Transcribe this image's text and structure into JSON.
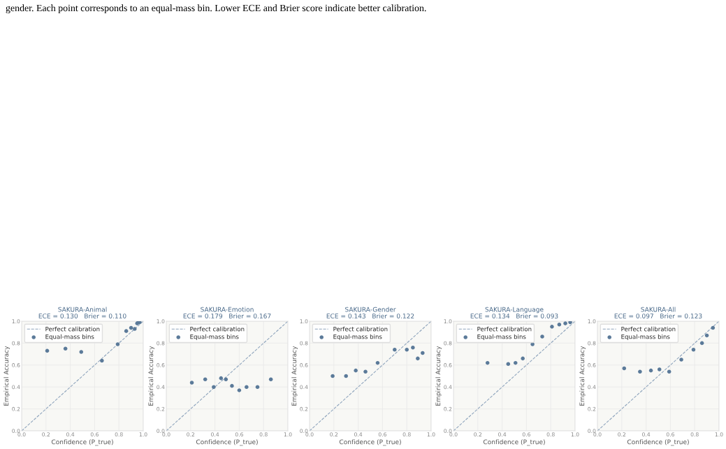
{
  "chart_data": [
    {
      "type": "scatter",
      "title": "SAKURA-Animal",
      "subtitle": "ECE = 0.130   Brier = 0.110",
      "xlabel": "Confidence (P_true)",
      "ylabel": "Empirical Accuracy",
      "annotations": [
        "gender. Each point corresponds to an equal-mass bin. Lower ECE and Brier score indicate better calibration."
      ],
      "xlim": [
        0,
        1
      ],
      "ylim": [
        0,
        1
      ],
      "xticks": [
        {
          "value": 0,
          "label": "0.0"
        },
        {
          "value": 0.2,
          "label": "0.2"
        },
        {
          "value": 0.4,
          "label": "0.4"
        },
        {
          "value": 0.6,
          "label": "0.6"
        },
        {
          "value": 0.8,
          "label": "0.8"
        },
        {
          "value": 1,
          "label": "1.0"
        }
      ],
      "yticks": [
        {
          "value": 0,
          "label": "0.0"
        },
        {
          "value": 0.2,
          "label": "0.2"
        },
        {
          "value": 0.4,
          "label": "0.4"
        },
        {
          "value": 0.6,
          "label": "0.6"
        },
        {
          "value": 0.8,
          "label": "0.8"
        },
        {
          "value": 1,
          "label": "1.0"
        }
      ],
      "grid": true,
      "legend": "top left",
      "series": [
        {
          "name": "Perfect calibration",
          "type": "line",
          "line_style": "dashed",
          "marker": "none",
          "color": "#8fa5bd",
          "x": [
            0,
            1
          ],
          "values": [
            0,
            1
          ]
        },
        {
          "name": "Equal-mass bins",
          "marker": "circle",
          "color": "#5b7a99",
          "x": [
            0.21,
            0.36,
            0.49,
            0.66,
            0.79,
            0.86,
            0.9,
            0.93,
            0.95,
            0.96,
            0.97
          ],
          "values": [
            0.73,
            0.75,
            0.72,
            0.64,
            0.79,
            0.91,
            0.94,
            0.93,
            0.98,
            0.99,
            0.99
          ]
        }
      ]
    },
    {
      "type": "scatter",
      "title": "SAKURA-Emotion",
      "subtitle": "ECE = 0.179   Brier = 0.167",
      "xlabel": "Confidence (P_true)",
      "ylabel": "Empirical Accuracy",
      "xlim": [
        0,
        1
      ],
      "ylim": [
        0,
        1
      ],
      "xticks": [
        {
          "value": 0,
          "label": "0.0"
        },
        {
          "value": 0.2,
          "label": "0.2"
        },
        {
          "value": 0.4,
          "label": "0.4"
        },
        {
          "value": 0.6,
          "label": "0.6"
        },
        {
          "value": 0.8,
          "label": "0.8"
        },
        {
          "value": 1,
          "label": "1.0"
        }
      ],
      "yticks": [
        {
          "value": 0,
          "label": "0.0"
        },
        {
          "value": 0.2,
          "label": "0.2"
        },
        {
          "value": 0.4,
          "label": "0.4"
        },
        {
          "value": 0.6,
          "label": "0.6"
        },
        {
          "value": 0.8,
          "label": "0.8"
        },
        {
          "value": 1,
          "label": "1.0"
        }
      ],
      "grid": true,
      "legend": "top left",
      "series": [
        {
          "name": "Perfect calibration",
          "type": "line",
          "line_style": "dashed",
          "marker": "none",
          "color": "#8fa5bd",
          "x": [
            0,
            1
          ],
          "values": [
            0,
            1
          ]
        },
        {
          "name": "Equal-mass bins",
          "marker": "circle",
          "color": "#5b7a99",
          "x": [
            0.21,
            0.32,
            0.39,
            0.45,
            0.49,
            0.54,
            0.6,
            0.66,
            0.75,
            0.86
          ],
          "values": [
            0.44,
            0.47,
            0.4,
            0.48,
            0.47,
            0.41,
            0.37,
            0.4,
            0.4,
            0.47
          ]
        }
      ]
    },
    {
      "type": "scatter",
      "title": "SAKURA-Gender",
      "subtitle": "ECE = 0.143   Brier = 0.122",
      "xlabel": "Confidence (P_true)",
      "ylabel": "Empirical Accuracy",
      "xlim": [
        0,
        1
      ],
      "ylim": [
        0,
        1
      ],
      "xticks": [
        {
          "value": 0,
          "label": "0.0"
        },
        {
          "value": 0.2,
          "label": "0.2"
        },
        {
          "value": 0.4,
          "label": "0.4"
        },
        {
          "value": 0.6,
          "label": "0.6"
        },
        {
          "value": 0.8,
          "label": "0.8"
        },
        {
          "value": 1,
          "label": "1.0"
        }
      ],
      "yticks": [
        {
          "value": 0,
          "label": "0.0"
        },
        {
          "value": 0.2,
          "label": "0.2"
        },
        {
          "value": 0.4,
          "label": "0.4"
        },
        {
          "value": 0.6,
          "label": "0.6"
        },
        {
          "value": 0.8,
          "label": "0.8"
        },
        {
          "value": 1,
          "label": "1.0"
        }
      ],
      "grid": true,
      "legend": "top left",
      "series": [
        {
          "name": "Perfect calibration",
          "type": "line",
          "line_style": "dashed",
          "marker": "none",
          "color": "#8fa5bd",
          "x": [
            0,
            1
          ],
          "values": [
            0,
            1
          ]
        },
        {
          "name": "Equal-mass bins",
          "marker": "circle",
          "color": "#5b7a99",
          "x": [
            0.19,
            0.3,
            0.38,
            0.46,
            0.56,
            0.7,
            0.8,
            0.85,
            0.89,
            0.93
          ],
          "values": [
            0.5,
            0.5,
            0.55,
            0.54,
            0.62,
            0.74,
            0.74,
            0.76,
            0.66,
            0.71
          ]
        }
      ]
    },
    {
      "type": "scatter",
      "title": "SAKURA-Language",
      "subtitle": "ECE = 0.134   Brier = 0.093",
      "xlabel": "Confidence (P_true)",
      "ylabel": "Empirical Accuracy",
      "xlim": [
        0,
        1
      ],
      "ylim": [
        0,
        1
      ],
      "xticks": [
        {
          "value": 0,
          "label": "0.0"
        },
        {
          "value": 0.2,
          "label": "0.2"
        },
        {
          "value": 0.4,
          "label": "0.4"
        },
        {
          "value": 0.6,
          "label": "0.6"
        },
        {
          "value": 0.8,
          "label": "0.8"
        },
        {
          "value": 1,
          "label": "1.0"
        }
      ],
      "yticks": [
        {
          "value": 0,
          "label": "0.0"
        },
        {
          "value": 0.2,
          "label": "0.2"
        },
        {
          "value": 0.4,
          "label": "0.4"
        },
        {
          "value": 0.6,
          "label": "0.6"
        },
        {
          "value": 0.8,
          "label": "0.8"
        },
        {
          "value": 1,
          "label": "1.0"
        }
      ],
      "grid": true,
      "legend": "top left",
      "series": [
        {
          "name": "Perfect calibration",
          "type": "line",
          "line_style": "dashed",
          "marker": "none",
          "color": "#8fa5bd",
          "x": [
            0,
            1
          ],
          "values": [
            0,
            1
          ]
        },
        {
          "name": "Equal-mass bins",
          "marker": "circle",
          "color": "#5b7a99",
          "x": [
            0.28,
            0.45,
            0.51,
            0.57,
            0.65,
            0.73,
            0.81,
            0.87,
            0.92,
            0.96
          ],
          "values": [
            0.62,
            0.61,
            0.62,
            0.66,
            0.79,
            0.86,
            0.95,
            0.97,
            0.98,
            0.99
          ]
        }
      ]
    },
    {
      "type": "scatter",
      "title": "SAKURA-All",
      "subtitle": "ECE = 0.097   Brier = 0.123",
      "xlabel": "Confidence (P_true)",
      "ylabel": "Empirical Accuracy",
      "xlim": [
        0,
        1
      ],
      "ylim": [
        0,
        1
      ],
      "xticks": [
        {
          "value": 0,
          "label": "0.0"
        },
        {
          "value": 0.2,
          "label": "0.2"
        },
        {
          "value": 0.4,
          "label": "0.4"
        },
        {
          "value": 0.6,
          "label": "0.6"
        },
        {
          "value": 0.8,
          "label": "0.8"
        },
        {
          "value": 1,
          "label": "1.0"
        }
      ],
      "yticks": [
        {
          "value": 0,
          "label": "0.0"
        },
        {
          "value": 0.2,
          "label": "0.2"
        },
        {
          "value": 0.4,
          "label": "0.4"
        },
        {
          "value": 0.6,
          "label": "0.6"
        },
        {
          "value": 0.8,
          "label": "0.8"
        },
        {
          "value": 1,
          "label": "1.0"
        }
      ],
      "grid": true,
      "legend": "top left",
      "series": [
        {
          "name": "Perfect calibration",
          "type": "line",
          "line_style": "dashed",
          "marker": "none",
          "color": "#8fa5bd",
          "x": [
            0,
            1
          ],
          "values": [
            0,
            1
          ]
        },
        {
          "name": "Equal-mass bins",
          "marker": "circle",
          "color": "#5b7a99",
          "x": [
            0.22,
            0.35,
            0.44,
            0.51,
            0.59,
            0.69,
            0.79,
            0.86,
            0.9,
            0.95
          ],
          "values": [
            0.57,
            0.54,
            0.55,
            0.56,
            0.54,
            0.65,
            0.74,
            0.8,
            0.87,
            0.94
          ]
        }
      ]
    }
  ]
}
